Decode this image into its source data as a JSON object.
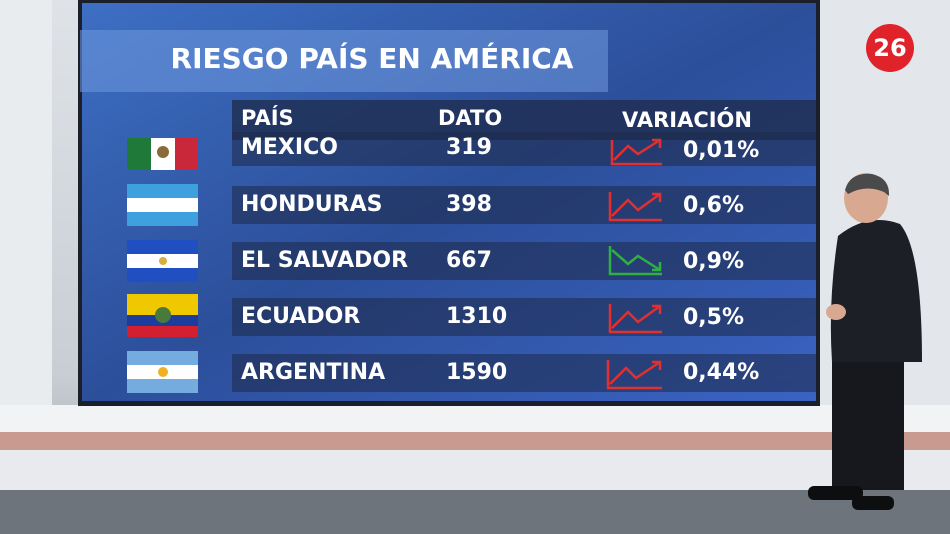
{
  "logo": "26",
  "table": {
    "title": "RIESGO PAÍS EN AMÉRICA",
    "headers": [
      "PAÍS",
      "DATO",
      "VARIACIÓN"
    ],
    "rows": [
      [
        "MEXICO",
        319,
        "0,01%"
      ],
      [
        "HONDURAS",
        398,
        "0,6%"
      ],
      [
        "EL SALVADOR",
        667,
        "0,9%"
      ],
      [
        "ECUADOR",
        1310,
        "0,5%"
      ],
      [
        "ARGENTINA",
        1590,
        "0,44%"
      ]
    ]
  }
}
